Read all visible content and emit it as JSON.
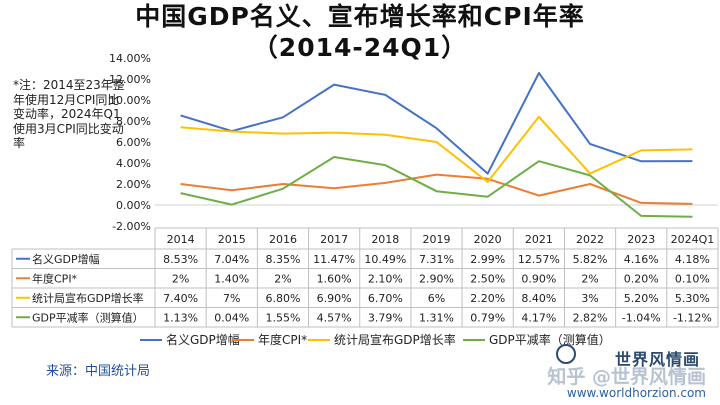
{
  "title": {
    "line1": "中国GDP名义、宣布增长率和CPI年率",
    "line2": "（2014-24Q1）"
  },
  "note": "*注：2014至23年整年使用12月CPI同比变动率，2024年Q1使用3月CPI同比变动率",
  "source": "来源：中国统计局",
  "watermark": {
    "text": "知乎 @世界风情画",
    "brand": "世界风情画",
    "url": "www.worldhorzion.com"
  },
  "chart_data": {
    "type": "line",
    "categories": [
      "2014",
      "2015",
      "2016",
      "2017",
      "2018",
      "2019",
      "2020",
      "2021",
      "2022",
      "2023",
      "2024Q1"
    ],
    "yticks": [
      "14.00%",
      "12.00%",
      "10.00%",
      "8.00%",
      "6.00%",
      "4.00%",
      "2.00%",
      "0.00%",
      "-2.00%"
    ],
    "ylim": [
      -2,
      14
    ],
    "grid": false,
    "legend_position": "bottom",
    "series": [
      {
        "name": "名义GDP增幅",
        "color": "#4472c4",
        "values": [
          8.53,
          7.04,
          8.35,
          11.47,
          10.49,
          7.31,
          2.99,
          12.57,
          5.82,
          4.16,
          4.18
        ],
        "labels": [
          "8.53%",
          "7.04%",
          "8.35%",
          "11.47%",
          "10.49%",
          "7.31%",
          "2.99%",
          "12.57%",
          "5.82%",
          "4.16%",
          "4.18%"
        ]
      },
      {
        "name": "年度CPI*",
        "color": "#ed7d31",
        "values": [
          2.0,
          1.4,
          2.0,
          1.6,
          2.1,
          2.9,
          2.5,
          0.9,
          2.0,
          0.2,
          0.1
        ],
        "labels": [
          "2%",
          "1.40%",
          "2%",
          "1.60%",
          "2.10%",
          "2.90%",
          "2.50%",
          "0.90%",
          "2%",
          "0.20%",
          "0.10%"
        ]
      },
      {
        "name": "统计局宣布GDP增长率",
        "color": "#ffc000",
        "values": [
          7.4,
          7.0,
          6.8,
          6.9,
          6.7,
          6.0,
          2.2,
          8.4,
          3.0,
          5.2,
          5.3
        ],
        "labels": [
          "7.40%",
          "7%",
          "6.80%",
          "6.90%",
          "6.70%",
          "6%",
          "2.20%",
          "8.40%",
          "3%",
          "5.20%",
          "5.30%"
        ]
      },
      {
        "name": "GDP平减率（测算值）",
        "color": "#70ad47",
        "values": [
          1.13,
          0.04,
          1.55,
          4.57,
          3.79,
          1.31,
          0.79,
          4.17,
          2.82,
          -1.04,
          -1.12
        ],
        "labels": [
          "1.13%",
          "0.04%",
          "1.55%",
          "4.57%",
          "3.79%",
          "1.31%",
          "0.79%",
          "4.17%",
          "2.82%",
          "-1.04%",
          "-1.12%"
        ]
      }
    ]
  }
}
